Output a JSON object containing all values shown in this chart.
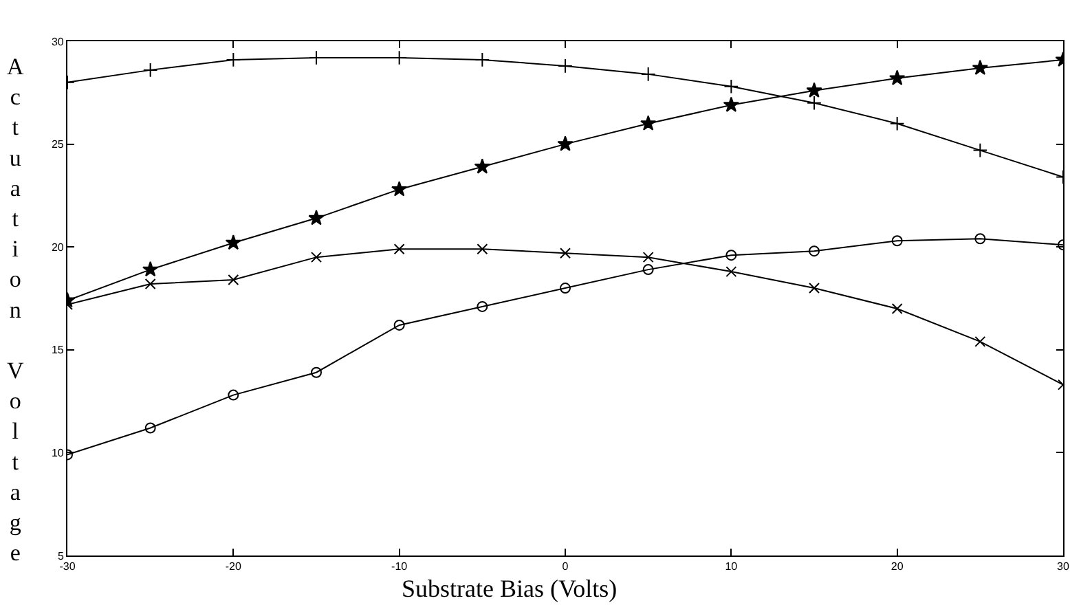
{
  "chart_data": {
    "type": "line",
    "xlabel": "Substrate Bias (Volts)",
    "ylabel": "Actuation Voltage",
    "x": [
      -30,
      -25,
      -20,
      -15,
      -10,
      -5,
      0,
      5,
      10,
      15,
      20,
      25,
      30
    ],
    "series": [
      {
        "color": "#000000",
        "marker": "cross",
        "values": [
          28.0,
          28.6,
          29.1,
          29.2,
          29.2,
          29.1,
          28.8,
          28.4,
          27.8,
          27.0,
          26.0,
          24.7,
          23.4
        ]
      },
      {
        "color": "#000000",
        "marker": "star",
        "values": [
          17.4,
          18.9,
          20.2,
          21.4,
          22.8,
          23.9,
          25.0,
          26.0,
          26.9,
          27.6,
          28.2,
          28.7,
          29.1
        ]
      },
      {
        "color": "#000000",
        "marker": "x",
        "values": [
          17.2,
          18.2,
          18.4,
          19.5,
          19.9,
          19.9,
          19.7,
          19.5,
          18.8,
          18.0,
          17.0,
          15.4,
          13.3
        ]
      },
      {
        "color": "#000000",
        "marker": "circle",
        "values": [
          9.9,
          11.2,
          12.8,
          13.9,
          16.2,
          17.1,
          18.0,
          18.9,
          19.6,
          19.8,
          20.3,
          20.4,
          20.1
        ]
      }
    ],
    "xlim": [
      -30,
      30
    ],
    "ylim": [
      5,
      30
    ],
    "xticks": [
      -30,
      -20,
      -10,
      0,
      10,
      20,
      30
    ],
    "yticks": [
      5,
      10,
      15,
      20,
      25,
      30
    ],
    "line_style": "solid"
  }
}
